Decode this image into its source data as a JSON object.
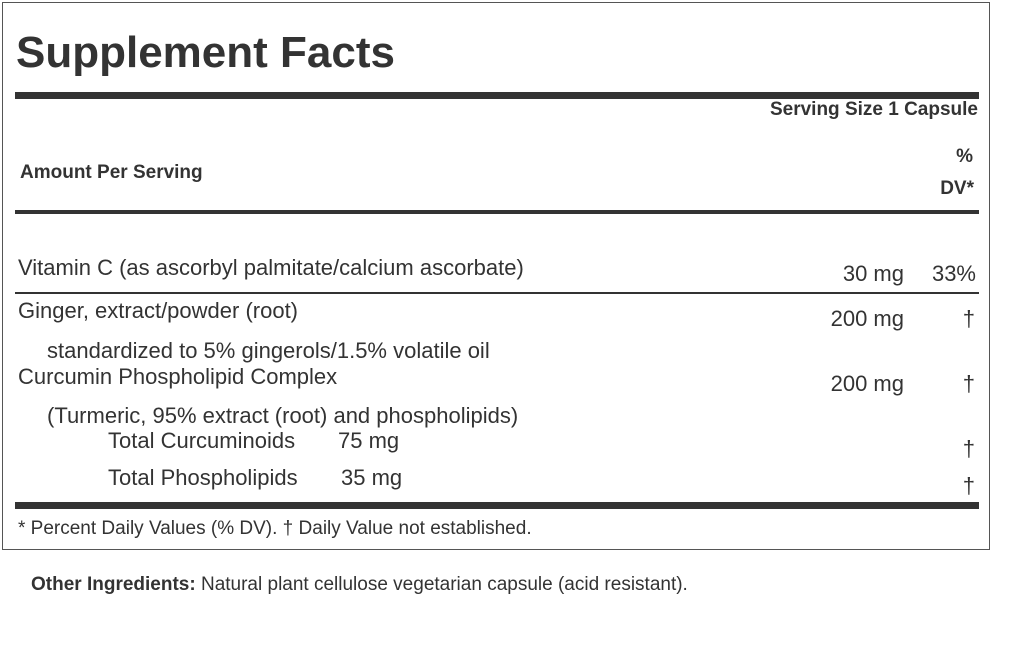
{
  "title": "Supplement Facts",
  "serving_size": "Serving Size 1 Capsule",
  "amount_per_serving": "Amount Per Serving",
  "dv_header_line1": "%",
  "dv_header_line2": "DV*",
  "rows": {
    "vitamin_c": {
      "name": "Vitamin C (as ascorbyl palmitate/calcium ascorbate)",
      "amount": "30 mg",
      "dv": "33%"
    },
    "ginger": {
      "name": "Ginger, extract/powder (root)",
      "amount": "200 mg",
      "dv": "†",
      "detail": "standardized to 5% gingerols/1.5% volatile oil"
    },
    "curcumin": {
      "name": "Curcumin Phospholipid Complex",
      "amount": "200 mg",
      "dv": "†",
      "detail": "(Turmeric, 95% extract (root) and phospholipids)"
    },
    "curcuminoids": {
      "name": "Total Curcuminoids",
      "amount": "75 mg",
      "dv": "†"
    },
    "phospholipids": {
      "name": "Total Phospholipids",
      "amount": "35 mg",
      "dv": "†"
    }
  },
  "footnote": "* Percent Daily Values (% DV). † Daily Value not established.",
  "other_ingredients_label": "Other Ingredients:",
  "other_ingredients_text": "Natural plant cellulose vegetarian capsule (acid resistant)."
}
